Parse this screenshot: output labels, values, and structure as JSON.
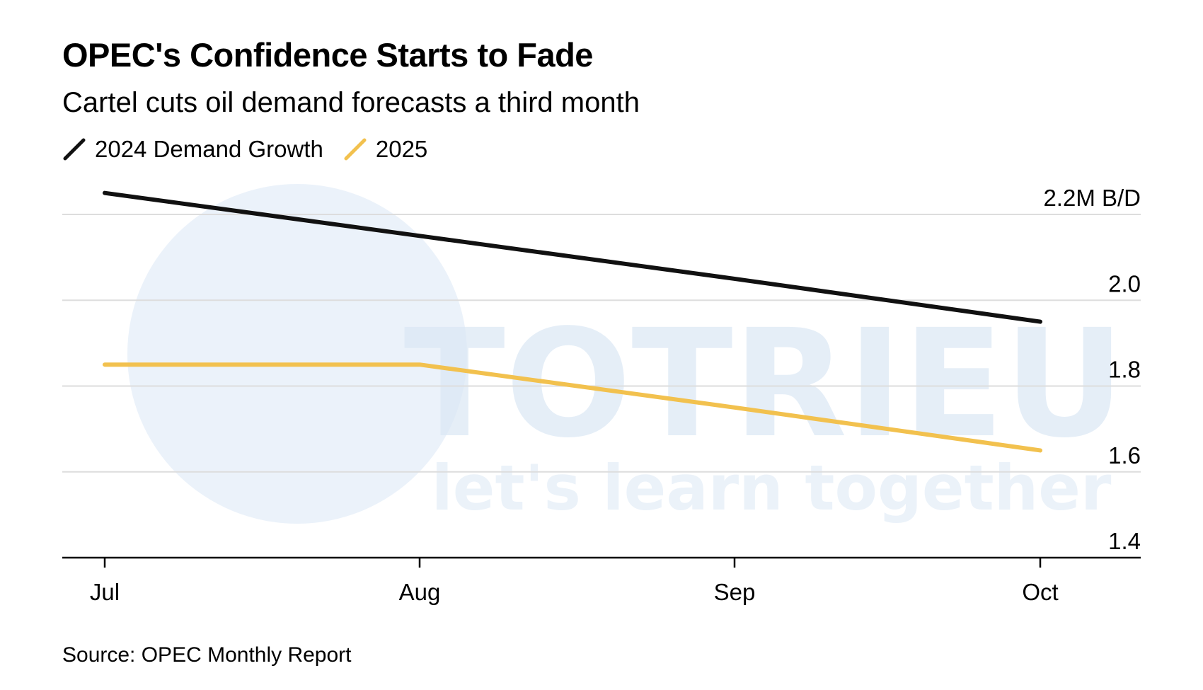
{
  "colors": {
    "series_2024": "#111111",
    "series_2025": "#f2c14e",
    "gridline": "#dddddd",
    "axis": "#000000",
    "watermark": "#dbe8f5"
  },
  "watermark": {
    "brand": "TOTRIEU",
    "tagline": "let's learn together"
  },
  "chart_data": {
    "type": "line",
    "title": "OPEC's Confidence Starts to Fade",
    "subtitle": "Cartel cuts oil demand forecasts a third month",
    "categories": [
      "Jul",
      "Aug",
      "Sep",
      "Oct"
    ],
    "series": [
      {
        "name": "2024 Demand Growth",
        "color": "#111111",
        "values": [
          2.25,
          2.15,
          2.05,
          1.95
        ]
      },
      {
        "name": "2025",
        "color": "#f2c14e",
        "values": [
          1.85,
          1.85,
          1.75,
          1.65
        ]
      }
    ],
    "y_ticks": [
      {
        "value": 1.4,
        "label": "1.4"
      },
      {
        "value": 1.6,
        "label": "1.6"
      },
      {
        "value": 1.8,
        "label": "1.8"
      },
      {
        "value": 2.0,
        "label": "2.0"
      },
      {
        "value": 2.2,
        "label": "2.2M B/D"
      }
    ],
    "ylim": [
      1.4,
      2.2
    ],
    "ylabel": "M B/D",
    "xlabel": "",
    "grid": true,
    "legend_position": "top-left",
    "source": "Source: OPEC Monthly Report"
  }
}
